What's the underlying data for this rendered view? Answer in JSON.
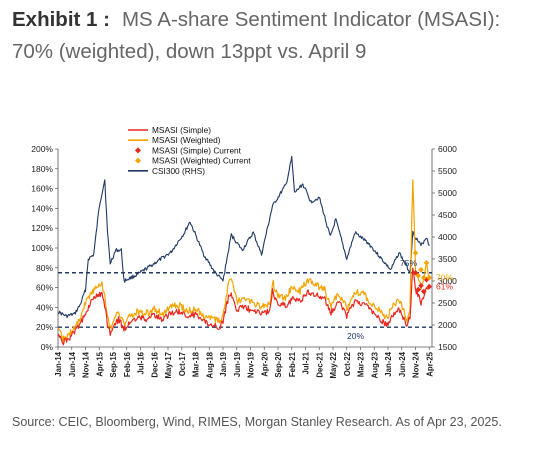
{
  "heading": {
    "exhibit": "Exhibit 1 :",
    "title": "MS A-share Sentiment Indicator (MSASI): 70% (weighted), down 13ppt vs. April 9"
  },
  "source": "Source: CEIC, Bloomberg, Wind, RIMES, Morgan Stanley Research. As of Apr 23, 2025.",
  "chart_data": {
    "type": "line",
    "x_tick_labels": [
      "Jan-14",
      "Jun-14",
      "Nov-14",
      "Apr-15",
      "Sep-15",
      "Feb-16",
      "Jul-16",
      "Dec-16",
      "May-17",
      "Oct-17",
      "Mar-18",
      "Aug-18",
      "Jan-19",
      "Jun-19",
      "Nov-19",
      "Apr-20",
      "Sep-20",
      "Feb-21",
      "Jul-21",
      "Dec-21",
      "May-22",
      "Oct-22",
      "Mar-23",
      "Aug-23",
      "Jan-24",
      "Jun-24",
      "Nov-24",
      "Apr-25"
    ],
    "y_left": {
      "min": 0,
      "max": 200,
      "ticks": [
        "0%",
        "20%",
        "40%",
        "60%",
        "80%",
        "100%",
        "120%",
        "140%",
        "160%",
        "180%",
        "200%"
      ]
    },
    "y_right": {
      "min": 1500,
      "max": 6000,
      "ticks": [
        "1500",
        "2000",
        "2500",
        "3000",
        "3500",
        "4000",
        "4500",
        "5000",
        "5500",
        "6000"
      ]
    },
    "grid": false,
    "legend_position": "top-center",
    "reference_lines": [
      {
        "value": 75,
        "label": "75%",
        "color": "#1F3864"
      },
      {
        "value": 20,
        "label": "20%",
        "color": "#1F3864"
      }
    ],
    "current_labels": [
      {
        "value": 70,
        "label": "70%",
        "color": "#F5A300"
      },
      {
        "value": 61,
        "label": "61%",
        "color": "#E8281E"
      }
    ],
    "series": [
      {
        "name": "MSASI (Simple)",
        "axis": "left",
        "color": "#E8281E",
        "points": [
          [
            "2014-01",
            12
          ],
          [
            "2014-03",
            5
          ],
          [
            "2014-05",
            8
          ],
          [
            "2014-07",
            15
          ],
          [
            "2014-09",
            22
          ],
          [
            "2014-11",
            35
          ],
          [
            "2015-01",
            45
          ],
          [
            "2015-03",
            52
          ],
          [
            "2015-05",
            55
          ],
          [
            "2015-06",
            42
          ],
          [
            "2015-07",
            22
          ],
          [
            "2015-08",
            14
          ],
          [
            "2015-09",
            18
          ],
          [
            "2015-11",
            28
          ],
          [
            "2016-01",
            18
          ],
          [
            "2016-03",
            24
          ],
          [
            "2016-06",
            30
          ],
          [
            "2016-09",
            28
          ],
          [
            "2016-12",
            32
          ],
          [
            "2017-03",
            28
          ],
          [
            "2017-06",
            34
          ],
          [
            "2017-09",
            36
          ],
          [
            "2017-12",
            30
          ],
          [
            "2018-03",
            33
          ],
          [
            "2018-06",
            26
          ],
          [
            "2018-09",
            22
          ],
          [
            "2018-12",
            20
          ],
          [
            "2019-01",
            26
          ],
          [
            "2019-03",
            50
          ],
          [
            "2019-04",
            54
          ],
          [
            "2019-06",
            38
          ],
          [
            "2019-09",
            40
          ],
          [
            "2019-12",
            36
          ],
          [
            "2020-03",
            34
          ],
          [
            "2020-06",
            36
          ],
          [
            "2020-07",
            56
          ],
          [
            "2020-09",
            44
          ],
          [
            "2020-12",
            42
          ],
          [
            "2021-02",
            48
          ],
          [
            "2021-05",
            46
          ],
          [
            "2021-08",
            56
          ],
          [
            "2021-11",
            52
          ],
          [
            "2022-02",
            48
          ],
          [
            "2022-04",
            34
          ],
          [
            "2022-07",
            46
          ],
          [
            "2022-10",
            32
          ],
          [
            "2023-01",
            46
          ],
          [
            "2023-04",
            44
          ],
          [
            "2023-07",
            36
          ],
          [
            "2023-10",
            28
          ],
          [
            "2024-01",
            22
          ],
          [
            "2024-02",
            30
          ],
          [
            "2024-05",
            38
          ],
          [
            "2024-08",
            22
          ],
          [
            "2024-09",
            30
          ],
          [
            "2024-10",
            78
          ],
          [
            "2024-11",
            58
          ],
          [
            "2025-01",
            45
          ],
          [
            "2025-03",
            60
          ],
          [
            "2025-04",
            61
          ]
        ]
      },
      {
        "name": "MSASI (Weighted)",
        "axis": "left",
        "color": "#F5A300",
        "points": [
          [
            "2014-01",
            16
          ],
          [
            "2014-03",
            8
          ],
          [
            "2014-05",
            12
          ],
          [
            "2014-07",
            20
          ],
          [
            "2014-09",
            28
          ],
          [
            "2014-11",
            45
          ],
          [
            "2015-01",
            55
          ],
          [
            "2015-03",
            60
          ],
          [
            "2015-05",
            65
          ],
          [
            "2015-06",
            50
          ],
          [
            "2015-07",
            30
          ],
          [
            "2015-08",
            20
          ],
          [
            "2015-09",
            25
          ],
          [
            "2015-11",
            35
          ],
          [
            "2016-01",
            24
          ],
          [
            "2016-03",
            30
          ],
          [
            "2016-06",
            36
          ],
          [
            "2016-09",
            34
          ],
          [
            "2016-12",
            38
          ],
          [
            "2017-03",
            34
          ],
          [
            "2017-06",
            40
          ],
          [
            "2017-09",
            42
          ],
          [
            "2017-12",
            36
          ],
          [
            "2018-03",
            38
          ],
          [
            "2018-06",
            32
          ],
          [
            "2018-09",
            28
          ],
          [
            "2018-12",
            26
          ],
          [
            "2019-01",
            32
          ],
          [
            "2019-03",
            64
          ],
          [
            "2019-04",
            68
          ],
          [
            "2019-06",
            46
          ],
          [
            "2019-09",
            48
          ],
          [
            "2019-12",
            44
          ],
          [
            "2020-03",
            40
          ],
          [
            "2020-06",
            44
          ],
          [
            "2020-07",
            66
          ],
          [
            "2020-09",
            52
          ],
          [
            "2020-12",
            50
          ],
          [
            "2021-02",
            60
          ],
          [
            "2021-05",
            56
          ],
          [
            "2021-08",
            68
          ],
          [
            "2021-11",
            62
          ],
          [
            "2022-02",
            58
          ],
          [
            "2022-04",
            42
          ],
          [
            "2022-07",
            54
          ],
          [
            "2022-10",
            40
          ],
          [
            "2023-01",
            56
          ],
          [
            "2023-04",
            54
          ],
          [
            "2023-07",
            44
          ],
          [
            "2023-10",
            36
          ],
          [
            "2024-01",
            28
          ],
          [
            "2024-02",
            40
          ],
          [
            "2024-05",
            48
          ],
          [
            "2024-08",
            28
          ],
          [
            "2024-09",
            40
          ],
          [
            "2024-10",
            172
          ],
          [
            "2024-11",
            78
          ],
          [
            "2025-01",
            60
          ],
          [
            "2025-03",
            85
          ],
          [
            "2025-04",
            70
          ]
        ]
      },
      {
        "name": "CSI300 (RHS)",
        "axis": "right",
        "color": "#1F3864",
        "points": [
          [
            "2014-01",
            2300
          ],
          [
            "2014-04",
            2200
          ],
          [
            "2014-07",
            2250
          ],
          [
            "2014-09",
            2450
          ],
          [
            "2014-11",
            2800
          ],
          [
            "2014-12",
            3500
          ],
          [
            "2015-02",
            3600
          ],
          [
            "2015-04",
            4700
          ],
          [
            "2015-06",
            5300
          ],
          [
            "2015-07",
            4100
          ],
          [
            "2015-08",
            3400
          ],
          [
            "2015-10",
            3700
          ],
          [
            "2015-12",
            3700
          ],
          [
            "2016-01",
            3000
          ],
          [
            "2016-06",
            3150
          ],
          [
            "2016-12",
            3400
          ],
          [
            "2017-06",
            3650
          ],
          [
            "2017-11",
            4100
          ],
          [
            "2018-01",
            4350
          ],
          [
            "2018-06",
            3600
          ],
          [
            "2018-10",
            3200
          ],
          [
            "2019-01",
            3000
          ],
          [
            "2019-04",
            4050
          ],
          [
            "2019-08",
            3700
          ],
          [
            "2019-12",
            4100
          ],
          [
            "2020-03",
            3600
          ],
          [
            "2020-07",
            4700
          ],
          [
            "2020-12",
            5200
          ],
          [
            "2021-02",
            5800
          ],
          [
            "2021-03",
            5000
          ],
          [
            "2021-06",
            5200
          ],
          [
            "2021-09",
            4800
          ],
          [
            "2021-12",
            4900
          ],
          [
            "2022-04",
            4000
          ],
          [
            "2022-06",
            4400
          ],
          [
            "2022-10",
            3500
          ],
          [
            "2023-01",
            4100
          ],
          [
            "2023-06",
            3850
          ],
          [
            "2023-10",
            3550
          ],
          [
            "2024-02",
            3250
          ],
          [
            "2024-05",
            3650
          ],
          [
            "2024-09",
            3200
          ],
          [
            "2024-10",
            4100
          ],
          [
            "2025-01",
            3800
          ],
          [
            "2025-03",
            4000
          ],
          [
            "2025-04",
            3800
          ]
        ]
      },
      {
        "name": "MSASI (Simple) Current",
        "axis": "left",
        "color": "#E8281E",
        "marker": "diamond",
        "points": [
          [
            "2024-11",
            75
          ],
          [
            "2024-12",
            58
          ],
          [
            "2025-01",
            62
          ],
          [
            "2025-02",
            56
          ],
          [
            "2025-03",
            68
          ],
          [
            "2025-04",
            61
          ]
        ]
      },
      {
        "name": "MSASI (Weighted) Current",
        "axis": "left",
        "color": "#F5A300",
        "marker": "diamond",
        "points": [
          [
            "2024-11",
            95
          ],
          [
            "2024-12",
            72
          ],
          [
            "2025-01",
            78
          ],
          [
            "2025-02",
            70
          ],
          [
            "2025-03",
            85
          ],
          [
            "2025-04",
            70
          ]
        ]
      }
    ]
  }
}
